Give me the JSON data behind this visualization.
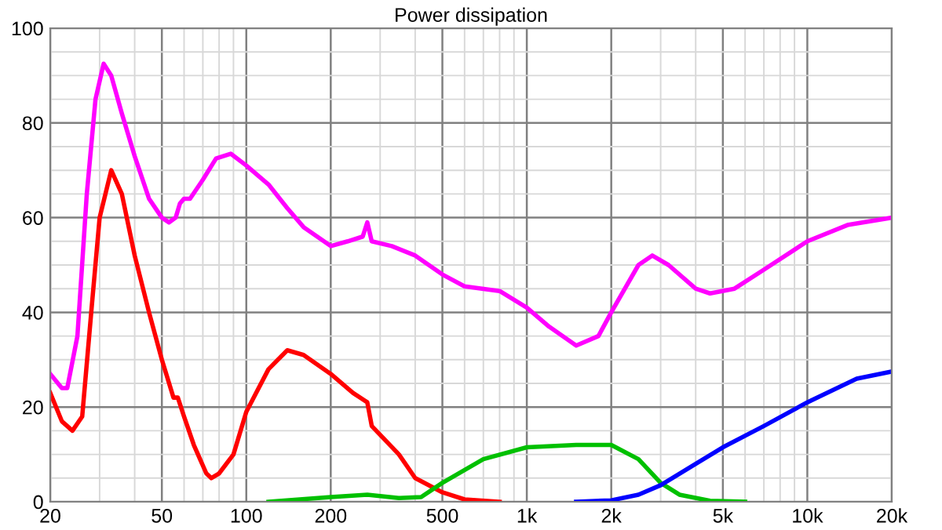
{
  "chart_data": {
    "type": "line",
    "title": "Power dissipation",
    "log": "x",
    "grid": true,
    "xlim": [
      20,
      20000
    ],
    "ylim": [
      0,
      100
    ],
    "xticks": [
      20,
      50,
      100,
      200,
      500,
      {
        "value": 1000,
        "label": "1k"
      },
      {
        "value": 2000,
        "label": "2k"
      },
      {
        "value": 5000,
        "label": "5k"
      },
      {
        "value": 10000,
        "label": "10k"
      },
      {
        "value": 20000,
        "label": "20k"
      }
    ],
    "yticks": [
      0,
      20,
      40,
      60,
      80,
      100
    ],
    "series": [
      {
        "color": "#ff00ff",
        "x": [
          20,
          22,
          23,
          25,
          27,
          29,
          31,
          33,
          36,
          40,
          45,
          50,
          53,
          56,
          58,
          60,
          63,
          70,
          78,
          88,
          100,
          120,
          140,
          160,
          200,
          230,
          260,
          270,
          280,
          330,
          400,
          500,
          600,
          800,
          1000,
          1200,
          1500,
          1800,
          2000,
          2500,
          2800,
          3200,
          4000,
          4500,
          5500,
          7000,
          10000,
          14000,
          20000
        ],
        "values": [
          27,
          24,
          24,
          35,
          65,
          85,
          92.5,
          90,
          82,
          73,
          64,
          60,
          59,
          60,
          63,
          64,
          64,
          68,
          72.5,
          73.5,
          71,
          67,
          62,
          58,
          54,
          55,
          56,
          59,
          55,
          54,
          52,
          48,
          45.5,
          44.5,
          41,
          37,
          33,
          35,
          40,
          50,
          52,
          50,
          45,
          44,
          45,
          49,
          55,
          58.5,
          60
        ]
      },
      {
        "color": "#ff0000",
        "x": [
          20,
          22,
          24,
          26,
          28,
          30,
          33,
          36,
          40,
          45,
          50,
          55,
          57,
          60,
          65,
          72,
          75,
          80,
          90,
          100,
          120,
          140,
          160,
          200,
          240,
          270,
          280,
          350,
          400,
          500,
          600,
          800
        ],
        "values": [
          23,
          17,
          15,
          18,
          40,
          60,
          70,
          65,
          52,
          40,
          30,
          22,
          22,
          18,
          12,
          6,
          5,
          6,
          10,
          19,
          28,
          32,
          31,
          27,
          23,
          21,
          16,
          10,
          5,
          2,
          0.5,
          0
        ]
      },
      {
        "color": "#00c000",
        "x": [
          120,
          200,
          270,
          350,
          420,
          500,
          700,
          1000,
          1500,
          2000,
          2500,
          3000,
          3500,
          4500,
          6000
        ],
        "values": [
          0,
          1,
          1.5,
          0.8,
          1,
          4,
          9,
          11.5,
          12,
          12,
          9,
          4,
          1.5,
          0.2,
          0
        ]
      },
      {
        "color": "#0000ff",
        "x": [
          1500,
          2000,
          2500,
          3000,
          4000,
          5000,
          7000,
          10000,
          15000,
          20000
        ],
        "values": [
          0,
          0.3,
          1.5,
          3.5,
          8,
          11.5,
          16,
          21,
          26,
          27.5
        ]
      }
    ]
  }
}
